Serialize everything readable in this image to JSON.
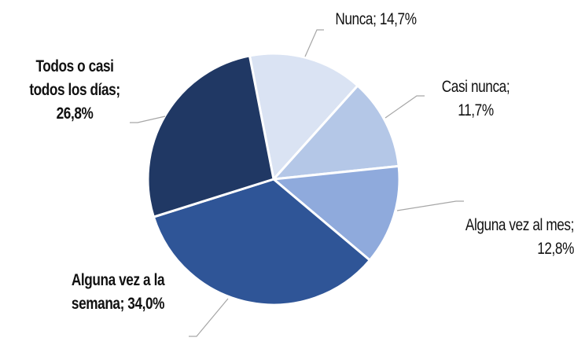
{
  "chart_data": {
    "type": "pie",
    "categories": [
      "Nunca",
      "Casi nunca",
      "Alguna vez al mes",
      "Alguna vez a la semana",
      "Todos o casi todos los días"
    ],
    "values": [
      14.7,
      11.7,
      12.8,
      34.0,
      26.8
    ],
    "value_labels": [
      "14,7%",
      "11,7%",
      "12,8%",
      "34,0%",
      "26,8%"
    ],
    "label_separator": "; ",
    "colors": [
      "#dae3f3",
      "#b4c7e7",
      "#8faadc",
      "#2f5597",
      "#203864"
    ]
  }
}
